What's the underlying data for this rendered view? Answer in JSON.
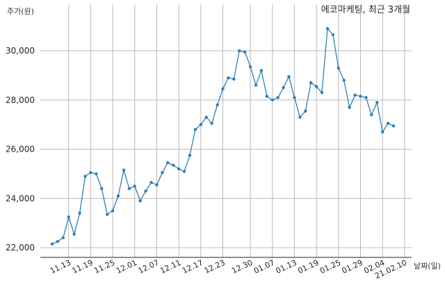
{
  "chart_data": {
    "type": "line",
    "title": "에코마케팅, 최근 3개월",
    "ylabel": "주가(원)",
    "xlabel": "날짜(일)",
    "ylim": [
      21800,
      31500
    ],
    "yticks": [
      22000,
      24000,
      26000,
      28000,
      30000
    ],
    "ytick_labels": [
      "22,000",
      "24,000",
      "26,000",
      "28,000",
      "30,000"
    ],
    "xtick_labels": [
      "11.13",
      "11.19",
      "11.25",
      "12.01",
      "12.07",
      "12.11",
      "12.17",
      "12.23",
      "12.30",
      "01.07",
      "01.13",
      "01.19",
      "01.25",
      "01.29",
      "02.04",
      "21.02.10"
    ],
    "xtick_index": [
      3,
      7,
      11,
      15,
      19,
      23,
      27,
      31,
      36,
      40,
      44,
      48,
      52,
      56,
      60,
      64
    ],
    "grid": true,
    "series": [
      {
        "color": "#2f7fb5",
        "values": [
          22150,
          22250,
          22400,
          23250,
          22550,
          23400,
          24900,
          25050,
          25000,
          24400,
          23350,
          23500,
          24100,
          25150,
          24400,
          24500,
          23900,
          24300,
          24650,
          24550,
          25050,
          25450,
          25350,
          25200,
          25100,
          25750,
          26800,
          27000,
          27300,
          27050,
          27800,
          28450,
          28900,
          28850,
          30000,
          29950,
          29350,
          28600,
          29200,
          28150,
          28000,
          28100,
          28500,
          28950,
          28100,
          27300,
          27550,
          28700,
          28550,
          28300,
          30900,
          30650,
          29300,
          28800,
          27700,
          28200,
          28150,
          28100,
          27400,
          27900,
          26700,
          27050,
          26950
        ]
      }
    ]
  }
}
